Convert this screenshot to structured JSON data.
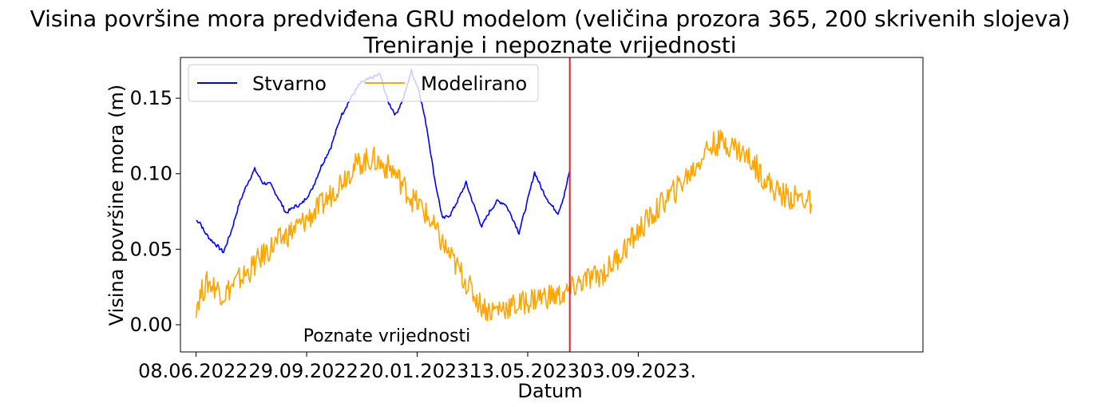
{
  "chart_data": {
    "type": "line",
    "title": "Visina površine mora predviđena GRU modelom (veličina prozora 365, 200 skrivenih slojeva)",
    "subtitle": "Treniranje i nepoznate vrijednosti",
    "xlabel": "Datum",
    "ylabel": "Visina površine mora (m)",
    "ylim": [
      -0.018,
      0.177
    ],
    "y_ticks": [
      0.0,
      0.05,
      0.1,
      0.15
    ],
    "y_tick_labels": [
      "0.00",
      "0.05",
      "0.10",
      "0.15"
    ],
    "x_range": [
      "2022-05-23",
      "2024-06-20"
    ],
    "x_ticks": [
      "2022-06-08",
      "2022-09-29",
      "2023-01-20",
      "2023-05-13",
      "2023-09-03"
    ],
    "x_tick_labels": [
      "08.06.2022.",
      "29.09.2022.",
      "20.01.2023.",
      "13.05.2023.",
      "03.09.2023."
    ],
    "grid": false,
    "legend": "top-left",
    "legend_columns": 2,
    "split_date": "2023-06-25",
    "split_color": "#d62728",
    "annotation": "Poznate vrijednosti",
    "annotation_position": {
      "date": "2022-12-20",
      "value": -0.007
    },
    "series": [
      {
        "name": "Stvarno",
        "color": "#0000ff",
        "points": [
          [
            "2022-06-08",
            0.069
          ],
          [
            "2022-06-12",
            0.068
          ],
          [
            "2022-06-16",
            0.062
          ],
          [
            "2022-06-22",
            0.057
          ],
          [
            "2022-06-30",
            0.052
          ],
          [
            "2022-07-06",
            0.048
          ],
          [
            "2022-07-14",
            0.062
          ],
          [
            "2022-07-22",
            0.08
          ],
          [
            "2022-07-30",
            0.093
          ],
          [
            "2022-08-07",
            0.103
          ],
          [
            "2022-08-15",
            0.094
          ],
          [
            "2022-08-23",
            0.093
          ],
          [
            "2022-08-31",
            0.084
          ],
          [
            "2022-09-08",
            0.074
          ],
          [
            "2022-09-16",
            0.078
          ],
          [
            "2022-09-24",
            0.08
          ],
          [
            "2022-10-04",
            0.089
          ],
          [
            "2022-10-14",
            0.105
          ],
          [
            "2022-10-24",
            0.118
          ],
          [
            "2022-11-03",
            0.138
          ],
          [
            "2022-11-13",
            0.15
          ],
          [
            "2022-11-23",
            0.16
          ],
          [
            "2022-12-03",
            0.163
          ],
          [
            "2022-12-13",
            0.166
          ],
          [
            "2022-12-21",
            0.148
          ],
          [
            "2022-12-29",
            0.139
          ],
          [
            "2023-01-06",
            0.15
          ],
          [
            "2023-01-14",
            0.168
          ],
          [
            "2023-01-22",
            0.155
          ],
          [
            "2023-01-30",
            0.13
          ],
          [
            "2023-02-07",
            0.096
          ],
          [
            "2023-02-15",
            0.07
          ],
          [
            "2023-02-23",
            0.073
          ],
          [
            "2023-03-03",
            0.083
          ],
          [
            "2023-03-11",
            0.094
          ],
          [
            "2023-03-19",
            0.079
          ],
          [
            "2023-03-27",
            0.065
          ],
          [
            "2023-04-04",
            0.075
          ],
          [
            "2023-04-12",
            0.082
          ],
          [
            "2023-04-20",
            0.08
          ],
          [
            "2023-04-28",
            0.07
          ],
          [
            "2023-05-04",
            0.061
          ],
          [
            "2023-05-12",
            0.08
          ],
          [
            "2023-05-20",
            0.101
          ],
          [
            "2023-05-28",
            0.089
          ],
          [
            "2023-06-05",
            0.08
          ],
          [
            "2023-06-13",
            0.074
          ],
          [
            "2023-06-19",
            0.085
          ],
          [
            "2023-06-25",
            0.102
          ]
        ]
      },
      {
        "name": "Modelirano",
        "color": "#ffa500",
        "points": [
          [
            "2022-06-08",
            0.013
          ],
          [
            "2022-06-14",
            0.022
          ],
          [
            "2022-06-20",
            0.028
          ],
          [
            "2022-06-28",
            0.025
          ],
          [
            "2022-07-06",
            0.02
          ],
          [
            "2022-07-14",
            0.025
          ],
          [
            "2022-07-22",
            0.03
          ],
          [
            "2022-07-30",
            0.034
          ],
          [
            "2022-08-07",
            0.04
          ],
          [
            "2022-08-17",
            0.047
          ],
          [
            "2022-08-27",
            0.053
          ],
          [
            "2022-09-06",
            0.058
          ],
          [
            "2022-09-16",
            0.063
          ],
          [
            "2022-09-26",
            0.068
          ],
          [
            "2022-10-06",
            0.074
          ],
          [
            "2022-10-16",
            0.08
          ],
          [
            "2022-10-26",
            0.088
          ],
          [
            "2022-11-05",
            0.097
          ],
          [
            "2022-11-15",
            0.104
          ],
          [
            "2022-11-25",
            0.108
          ],
          [
            "2022-12-05",
            0.11
          ],
          [
            "2022-12-15",
            0.106
          ],
          [
            "2022-12-25",
            0.103
          ],
          [
            "2023-01-04",
            0.094
          ],
          [
            "2023-01-14",
            0.084
          ],
          [
            "2023-01-24",
            0.078
          ],
          [
            "2023-02-03",
            0.068
          ],
          [
            "2023-02-13",
            0.056
          ],
          [
            "2023-02-23",
            0.045
          ],
          [
            "2023-03-05",
            0.035
          ],
          [
            "2023-03-15",
            0.024
          ],
          [
            "2023-03-25",
            0.014
          ],
          [
            "2023-04-04",
            0.009
          ],
          [
            "2023-04-14",
            0.011
          ],
          [
            "2023-04-24",
            0.012
          ],
          [
            "2023-05-04",
            0.013
          ],
          [
            "2023-05-14",
            0.016
          ],
          [
            "2023-05-24",
            0.018
          ],
          [
            "2023-06-03",
            0.019
          ],
          [
            "2023-06-13",
            0.019
          ],
          [
            "2023-06-23",
            0.021
          ],
          [
            "2023-07-03",
            0.027
          ],
          [
            "2023-07-13",
            0.03
          ],
          [
            "2023-07-23",
            0.032
          ],
          [
            "2023-08-02",
            0.036
          ],
          [
            "2023-08-12",
            0.044
          ],
          [
            "2023-08-22",
            0.052
          ],
          [
            "2023-09-01",
            0.06
          ],
          [
            "2023-09-11",
            0.068
          ],
          [
            "2023-09-21",
            0.075
          ],
          [
            "2023-10-01",
            0.083
          ],
          [
            "2023-10-11",
            0.089
          ],
          [
            "2023-10-21",
            0.097
          ],
          [
            "2023-10-31",
            0.104
          ],
          [
            "2023-11-10",
            0.115
          ],
          [
            "2023-11-20",
            0.12
          ],
          [
            "2023-11-30",
            0.121
          ],
          [
            "2023-12-10",
            0.118
          ],
          [
            "2023-12-20",
            0.113
          ],
          [
            "2023-12-30",
            0.107
          ],
          [
            "2024-01-09",
            0.098
          ],
          [
            "2024-01-19",
            0.09
          ],
          [
            "2024-01-29",
            0.086
          ],
          [
            "2024-02-08",
            0.084
          ],
          [
            "2024-02-18",
            0.084
          ],
          [
            "2024-02-27",
            0.08
          ]
        ]
      }
    ]
  }
}
